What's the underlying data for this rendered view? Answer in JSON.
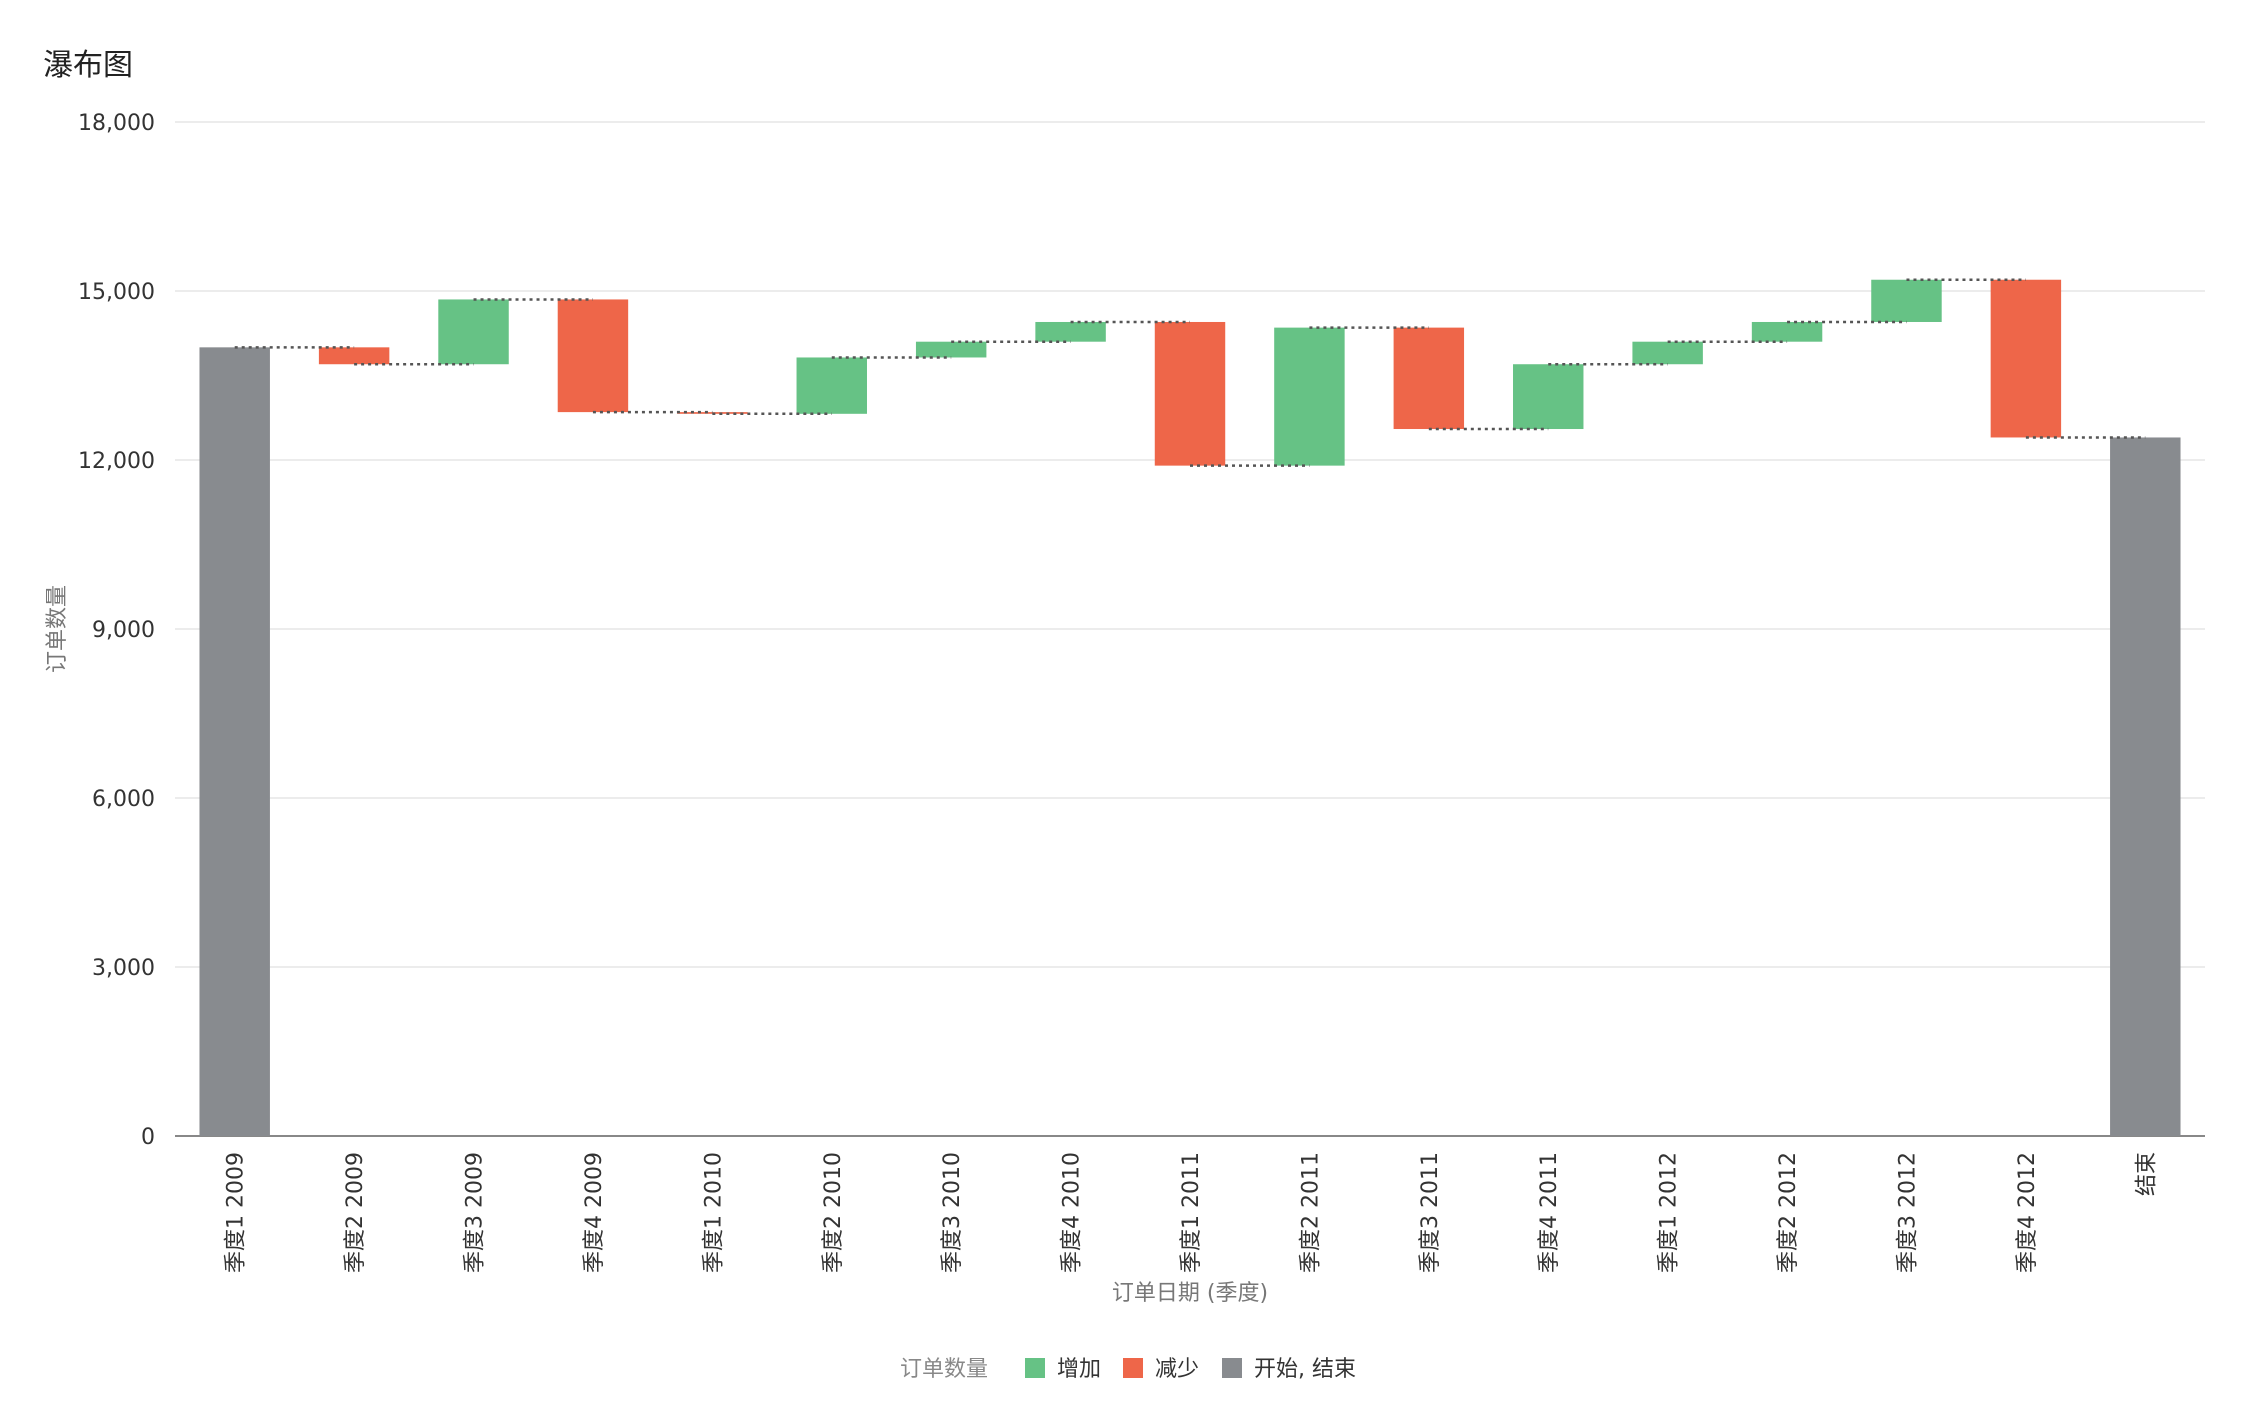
{
  "title": "瀑布图",
  "chart_data": {
    "type": "waterfall",
    "xlabel": "订单日期 (季度)",
    "ylabel": "订单数量",
    "ylim": [
      0,
      18000
    ],
    "yticks": [
      0,
      3000,
      6000,
      9000,
      12000,
      15000,
      18000
    ],
    "ytick_labels": [
      "0",
      "3,000",
      "6,000",
      "9,000",
      "12,000",
      "15,000",
      "18,000"
    ],
    "grid": true,
    "categories": [
      "季度1 2009",
      "季度2 2009",
      "季度3 2009",
      "季度4 2009",
      "季度1 2010",
      "季度2 2010",
      "季度3 2010",
      "季度4 2010",
      "季度1 2011",
      "季度2 2011",
      "季度3 2011",
      "季度4 2011",
      "季度1 2012",
      "季度2 2012",
      "季度3 2012",
      "季度4 2012",
      "结束"
    ],
    "bars": [
      {
        "kind": "total",
        "start": 0,
        "end": 14000
      },
      {
        "kind": "decrease",
        "start": 14000,
        "end": 13700
      },
      {
        "kind": "increase",
        "start": 13700,
        "end": 14850
      },
      {
        "kind": "decrease",
        "start": 14850,
        "end": 12850
      },
      {
        "kind": "decrease",
        "start": 12850,
        "end": 12820
      },
      {
        "kind": "increase",
        "start": 12820,
        "end": 13820
      },
      {
        "kind": "increase",
        "start": 13820,
        "end": 14100
      },
      {
        "kind": "increase",
        "start": 14100,
        "end": 14450
      },
      {
        "kind": "decrease",
        "start": 14450,
        "end": 11900
      },
      {
        "kind": "increase",
        "start": 11900,
        "end": 14350
      },
      {
        "kind": "decrease",
        "start": 14350,
        "end": 12550
      },
      {
        "kind": "increase",
        "start": 12550,
        "end": 13700
      },
      {
        "kind": "increase",
        "start": 13700,
        "end": 14100
      },
      {
        "kind": "increase",
        "start": 14100,
        "end": 14450
      },
      {
        "kind": "increase",
        "start": 14450,
        "end": 15200
      },
      {
        "kind": "decrease",
        "start": 15200,
        "end": 12400
      },
      {
        "kind": "total",
        "start": 0,
        "end": 12400
      }
    ],
    "legend": {
      "title": "订单数量",
      "position": "bottom",
      "items": [
        {
          "label": "增加",
          "kind": "increase"
        },
        {
          "label": "减少",
          "kind": "decrease"
        },
        {
          "label": "开始, 结束",
          "kind": "total"
        }
      ]
    },
    "colors": {
      "increase": "#66c285",
      "decrease": "#ee6649",
      "total": "#888b8f",
      "connector": "#555555",
      "grid": "#e5e5e5",
      "axis": "#888888"
    }
  }
}
